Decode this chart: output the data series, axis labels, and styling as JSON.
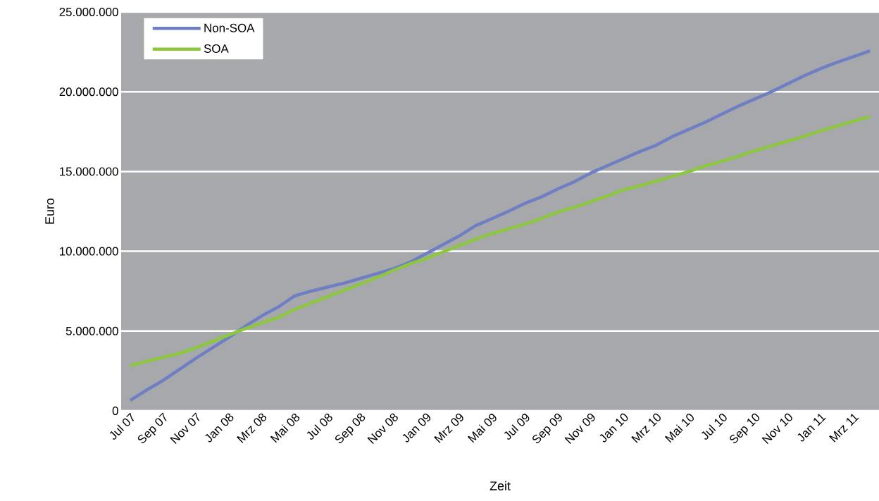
{
  "chart_data": {
    "type": "line",
    "xlabel": "Zeit",
    "ylabel": "Euro",
    "categories": [
      "Jul 07",
      null,
      "Sep 07",
      null,
      "Nov 07",
      null,
      "Jan 08",
      null,
      "Mrz 08",
      null,
      "Mai 08",
      null,
      "Jul 08",
      null,
      "Sep 08",
      null,
      "Nov 08",
      null,
      "Jan 09",
      null,
      "Mrz 09",
      null,
      "Mai 09",
      null,
      "Jul 09",
      null,
      "Sep 09",
      null,
      "Nov 09",
      null,
      "Jan 10",
      null,
      "Mrz 10",
      null,
      "Mai 10",
      null,
      "Jul 10",
      null,
      "Sep 10",
      null,
      "Nov 10",
      null,
      "Jan 11",
      null,
      "Mrz 11",
      null
    ],
    "series": [
      {
        "name": "Non-SOA",
        "color": "#6e7fc4",
        "values": [
          660000,
          1300000,
          1900000,
          2600000,
          3300000,
          3950000,
          4600000,
          5300000,
          5950000,
          6500000,
          7200000,
          7500000,
          7750000,
          8000000,
          8300000,
          8600000,
          8900000,
          9300000,
          9850000,
          10400000,
          10950000,
          11600000,
          12050000,
          12500000,
          13000000,
          13400000,
          13900000,
          14350000,
          14900000,
          15350000,
          15800000,
          16250000,
          16650000,
          17200000,
          17650000,
          18100000,
          18600000,
          19100000,
          19550000,
          20000000,
          20500000,
          21000000,
          21450000,
          21850000,
          22200000,
          22570000
        ]
      },
      {
        "name": "SOA",
        "color": "#8dc63f",
        "values": [
          2830000,
          3100000,
          3350000,
          3600000,
          3950000,
          4350000,
          4750000,
          5150000,
          5500000,
          5850000,
          6350000,
          6750000,
          7150000,
          7550000,
          7950000,
          8350000,
          8800000,
          9200000,
          9550000,
          9950000,
          10350000,
          10750000,
          11100000,
          11400000,
          11700000,
          12050000,
          12450000,
          12750000,
          13100000,
          13450000,
          13850000,
          14100000,
          14400000,
          14700000,
          15000000,
          15350000,
          15650000,
          15950000,
          16300000,
          16600000,
          16900000,
          17200000,
          17550000,
          17850000,
          18150000,
          18450000
        ]
      }
    ],
    "ylim": [
      0,
      25000000
    ],
    "yticks": [
      0,
      {
        "value": 5000000,
        "label": "5.000.000"
      },
      {
        "value": 10000000,
        "label": "10.000.000"
      },
      {
        "value": 15000000,
        "label": "15.000.000"
      },
      {
        "value": 20000000,
        "label": "20.000.000"
      },
      {
        "value": 25000000,
        "label": "25.000.000"
      }
    ],
    "grid": "y",
    "legend": "top left"
  }
}
